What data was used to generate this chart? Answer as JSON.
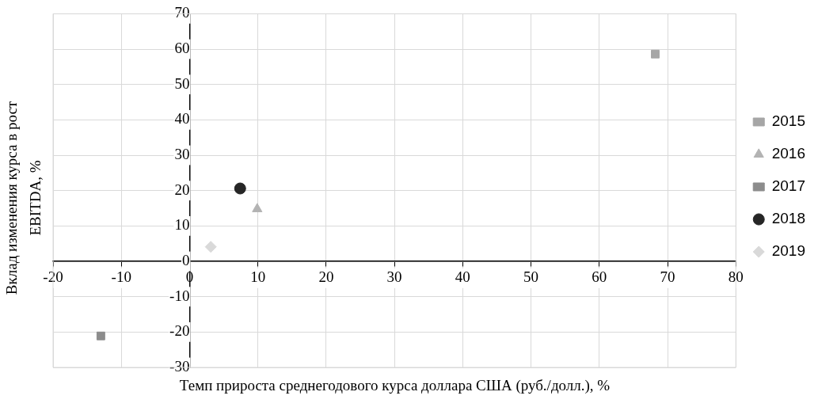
{
  "chart_data": {
    "type": "scatter",
    "xlabel": "Темп прироста среднегодового курса доллара США (руб./долл.), %",
    "ylabel": "Вклад изменения курса в рост EBITDA, %",
    "series": [
      {
        "name": "2015",
        "color": "#a6a6a6",
        "marker": "square",
        "x": [
          68.2
        ],
        "values": [
          58.6
        ]
      },
      {
        "name": "2016",
        "color": "#b3b3b3",
        "marker": "triangle",
        "x": [
          9.9
        ],
        "values": [
          14.8
        ]
      },
      {
        "name": "2017",
        "color": "#8c8c8c",
        "marker": "square",
        "x": [
          -13.0
        ],
        "values": [
          -21.1
        ]
      },
      {
        "name": "2018",
        "color": "#262626",
        "marker": "circle",
        "x": [
          7.4
        ],
        "values": [
          20.6
        ]
      },
      {
        "name": "2019",
        "color": "#d9d9d9",
        "marker": "diamond",
        "x": [
          3.1
        ],
        "values": [
          4.1
        ]
      }
    ],
    "xlim": [
      -20,
      80
    ],
    "xticks": [
      -20,
      -10,
      0,
      10,
      20,
      30,
      40,
      50,
      60,
      70,
      80
    ],
    "ylim": [
      -30,
      70
    ],
    "yticks": [
      -30,
      -20,
      -10,
      0,
      10,
      20,
      30,
      40,
      50,
      60,
      70
    ],
    "grid": true,
    "legend": "right"
  }
}
